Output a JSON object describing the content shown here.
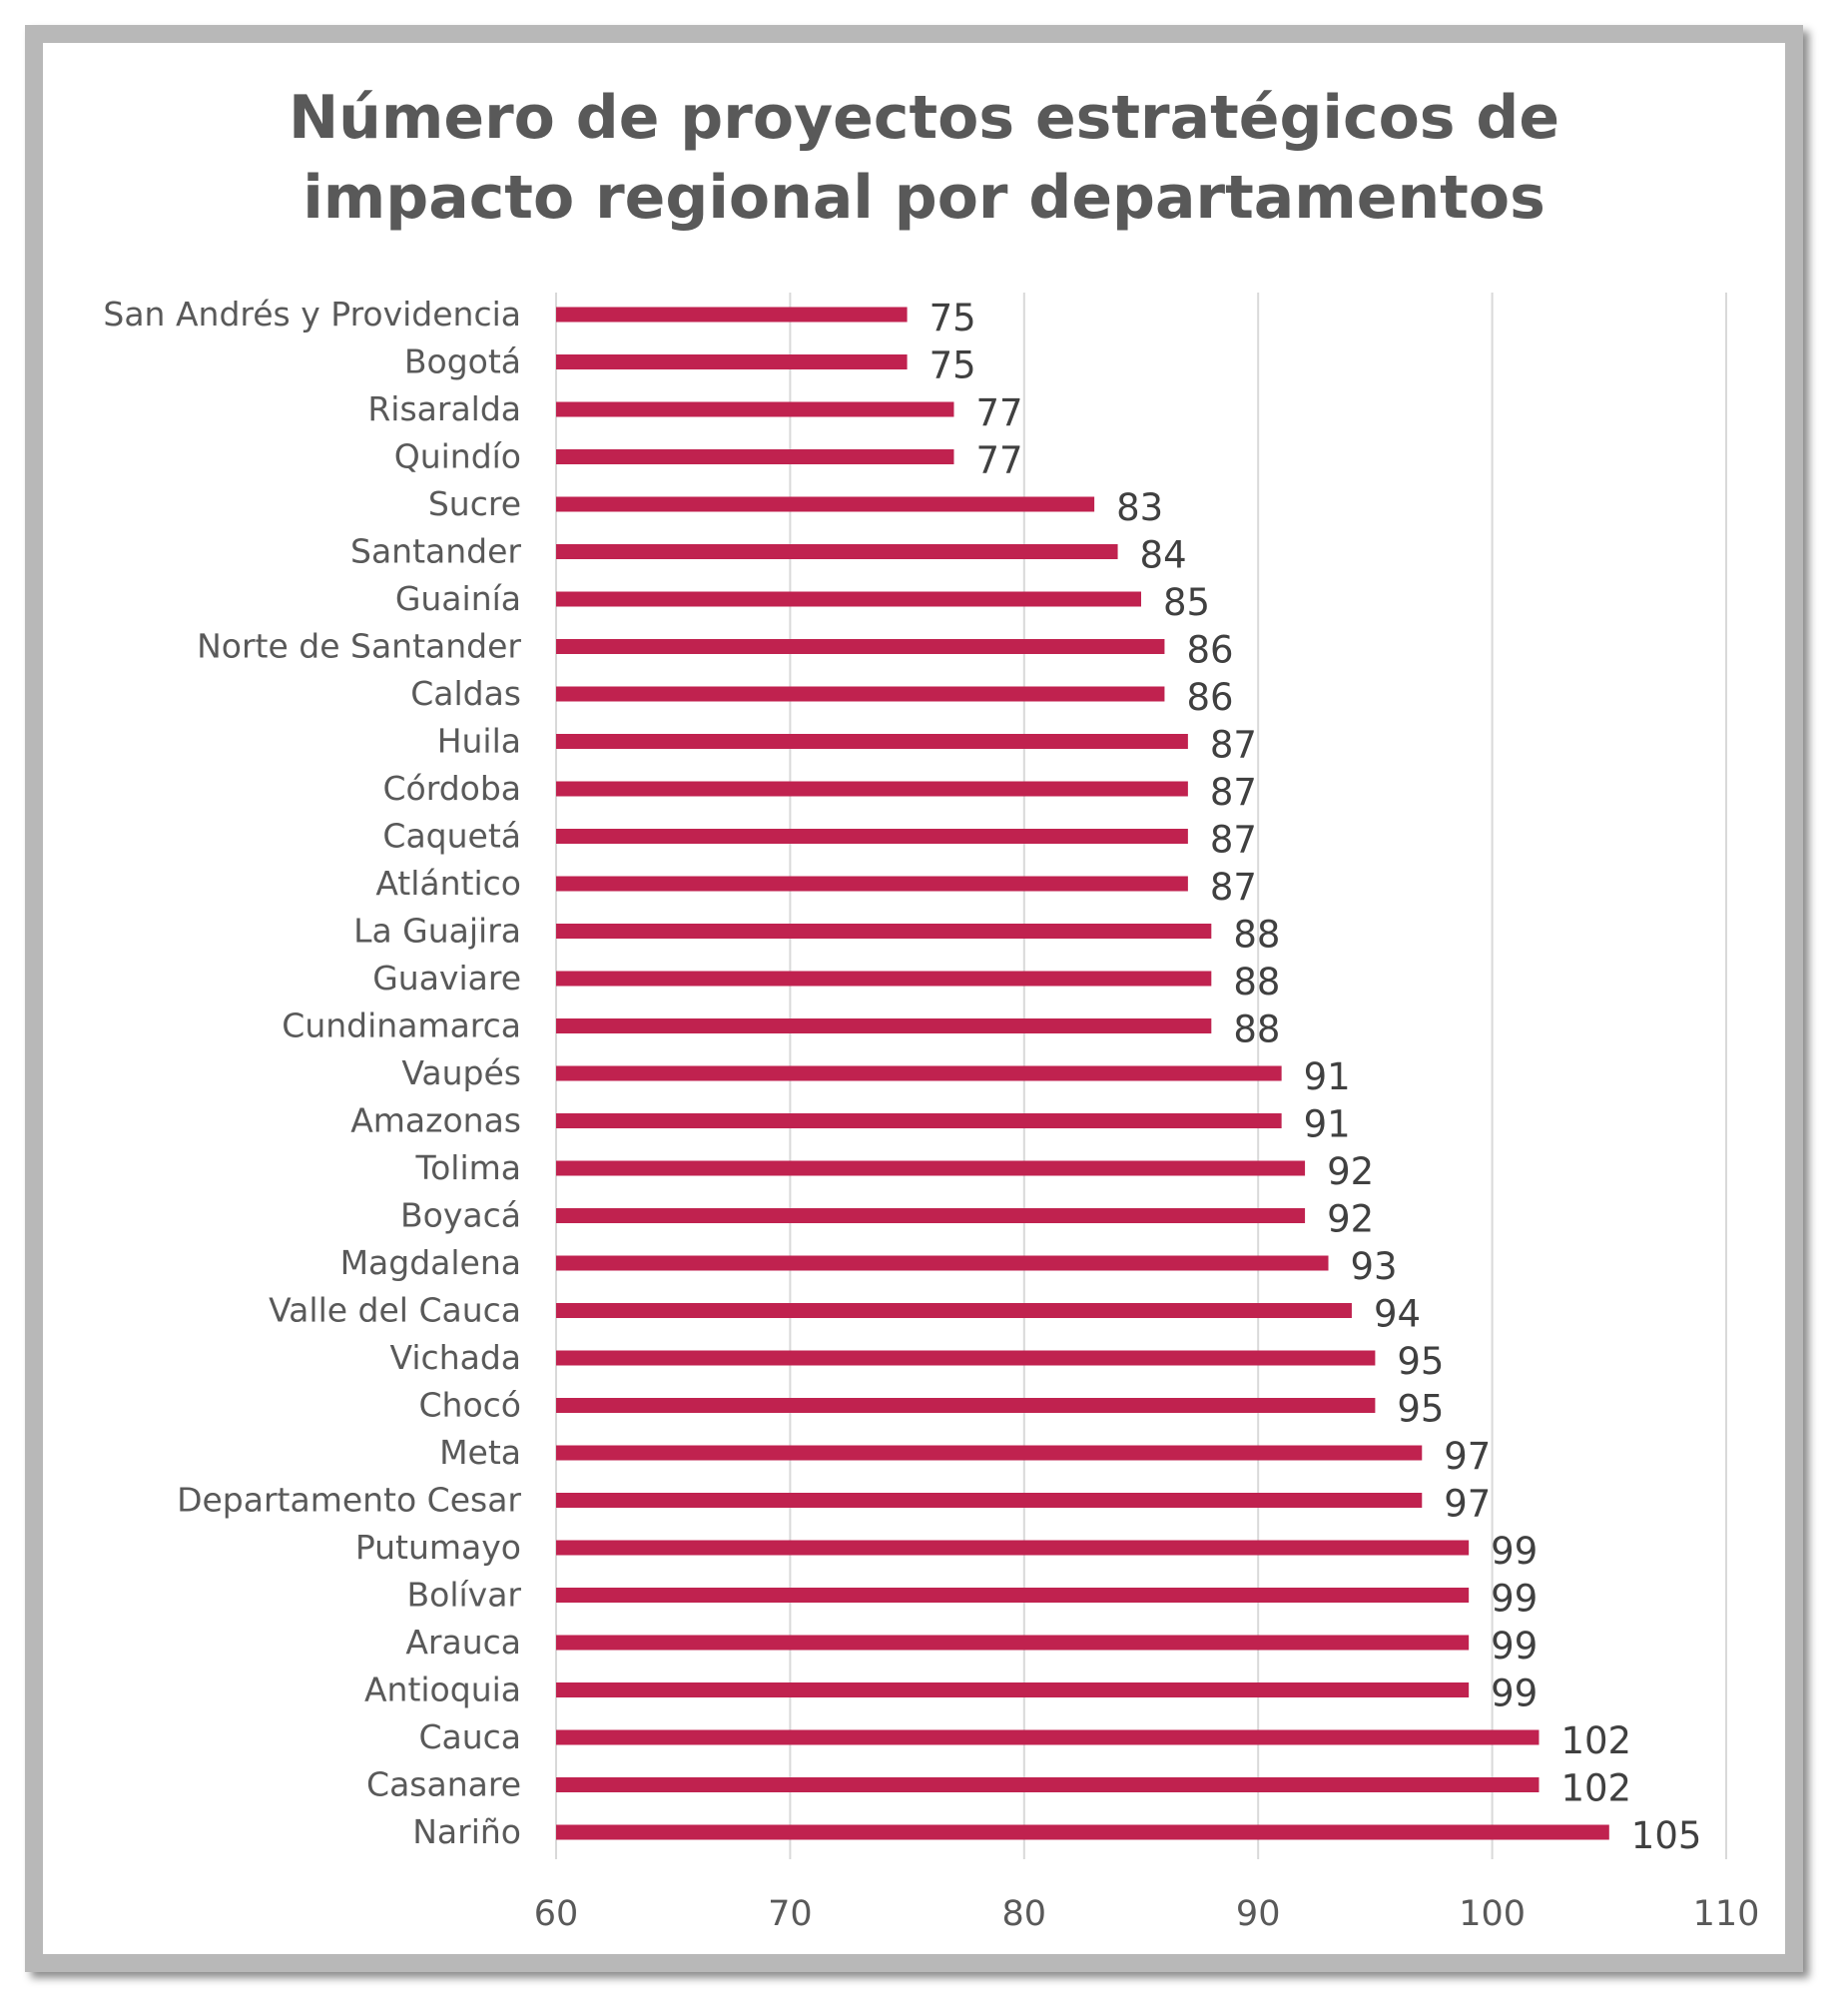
{
  "chart_data": {
    "type": "bar",
    "orientation": "horizontal",
    "title_lines": [
      "Número de proyectos estratégicos de",
      "impacto regional por departamentos"
    ],
    "categories": [
      "San Andrés y Providencia",
      "Bogotá",
      "Risaralda",
      "Quindío",
      "Sucre",
      "Santander",
      "Guainía",
      "Norte de Santander",
      "Caldas",
      "Huila",
      "Córdoba",
      "Caquetá",
      "Atlántico",
      "La Guajira",
      "Guaviare",
      "Cundinamarca",
      "Vaupés",
      "Amazonas",
      "Tolima",
      "Boyacá",
      "Magdalena",
      "Valle del Cauca",
      "Vichada",
      "Chocó",
      "Meta",
      "Departamento Cesar",
      "Putumayo",
      "Bolívar",
      "Arauca",
      "Antioquia",
      "Cauca",
      "Casanare",
      "Nariño"
    ],
    "values": [
      75,
      75,
      77,
      77,
      83,
      84,
      85,
      86,
      86,
      87,
      87,
      87,
      87,
      88,
      88,
      88,
      91,
      91,
      92,
      92,
      93,
      94,
      95,
      95,
      97,
      97,
      99,
      99,
      99,
      99,
      102,
      102,
      105
    ],
    "xlim": [
      60,
      110
    ],
    "xticks": [
      60,
      70,
      80,
      90,
      100,
      110
    ],
    "xlabel": "",
    "ylabel": "",
    "grid": "vertical",
    "legend": "none",
    "bar_color": "#c0224f",
    "gridline_color": "#d9d9d9"
  }
}
